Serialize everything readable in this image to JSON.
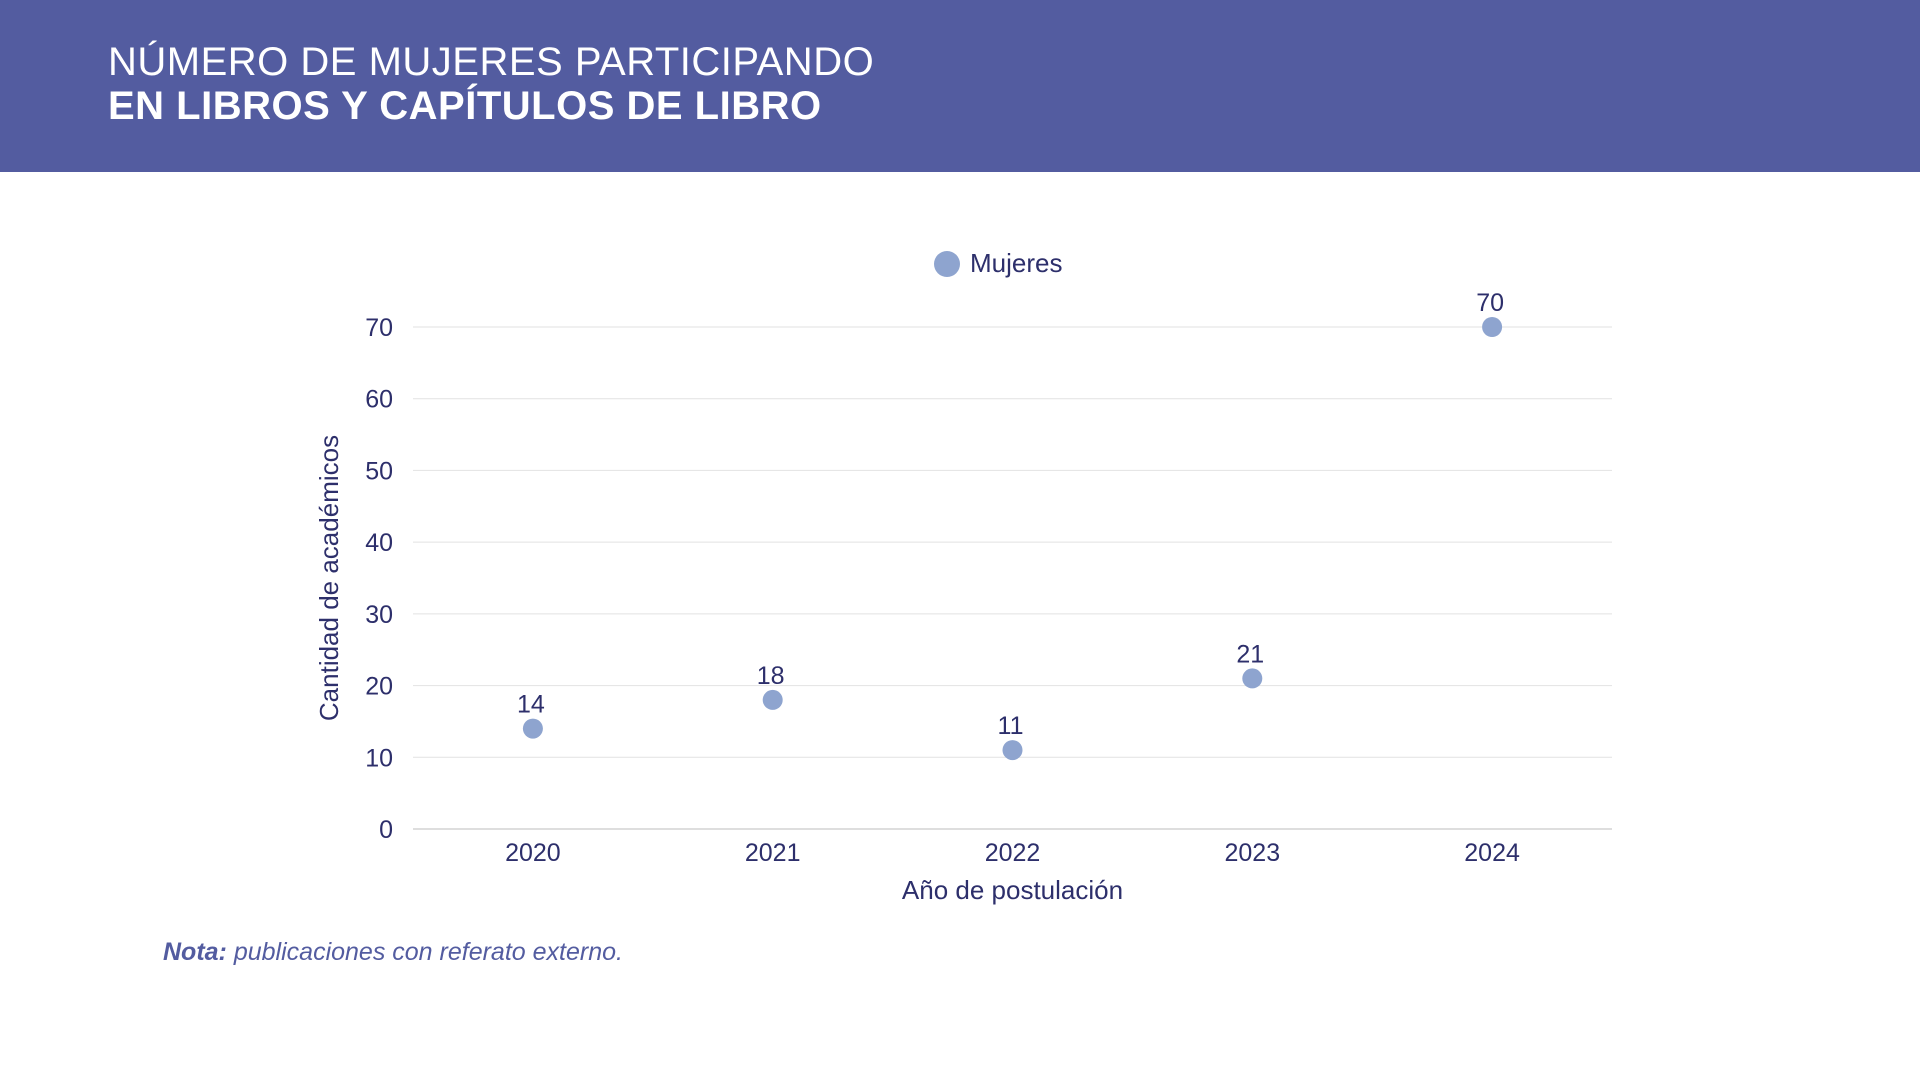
{
  "header": {
    "title_line1": "NÚMERO DE MUJERES PARTICIPANDO",
    "title_line2": "EN LIBROS Y CAPÍTULOS DE LIBRO"
  },
  "colors": {
    "header_bg": "#535ca0",
    "point": "#8ea4cf",
    "text_dark": "#2d2f6b",
    "grid": "#e2e2e2"
  },
  "chart_data": {
    "type": "scatter",
    "x": [
      "2020",
      "2021",
      "2022",
      "2023",
      "2024"
    ],
    "series": [
      {
        "name": "Mujeres",
        "values": [
          14,
          18,
          11,
          21,
          70
        ]
      }
    ],
    "xlabel": "Año de postulación",
    "ylabel": "Cantidad de académicos",
    "ylim": [
      0,
      70
    ],
    "yticks": [
      0,
      10,
      20,
      30,
      40,
      50,
      60,
      70
    ],
    "grid": true,
    "legend": "top-center",
    "data_labels": true
  },
  "note": {
    "label": "Nota:",
    "text": "publicaciones con referato externo."
  }
}
